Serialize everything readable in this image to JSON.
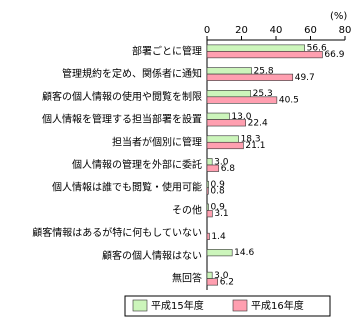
{
  "chart_data": {
    "type": "hbar",
    "unit_label": "(%)",
    "categories": [
      "部署ごとに管理",
      "管理規約を定め、関係者に通知",
      "顧客の個人情報の使用や閲覧を制限",
      "個人情報を管理する担当部署を設置",
      "担当者が個別に管理",
      "個人情報の管理を外部に委託",
      "個人情報は誰でも閲覧・使用可能",
      "その他",
      "顧客情報はあるが特に何もしていない",
      "顧客の個人情報はない",
      "無回答"
    ],
    "series": [
      {
        "name": "平成15年度",
        "color": "#ccf5bb",
        "values": [
          56.6,
          25.8,
          25.3,
          13.0,
          18.3,
          3.0,
          0.9,
          0.9,
          null,
          14.6,
          3.0
        ],
        "value_labels": [
          "56.6",
          "25.8",
          "25.3",
          "13.0",
          "18.3",
          "3.0",
          "0.9",
          "0.9",
          null,
          "14.6",
          "3.0"
        ]
      },
      {
        "name": "平成16年度",
        "color": "#ff9fb0",
        "values": [
          66.9,
          49.7,
          40.5,
          22.4,
          21.1,
          6.8,
          0.8,
          3.1,
          1.4,
          null,
          6.2
        ],
        "value_labels": [
          "66.9",
          "49.7",
          "40.5",
          "22.4",
          "21.1",
          "6.8",
          "0.8",
          "3.1",
          "1.4",
          null,
          "6.2"
        ]
      }
    ],
    "xlim": [
      0,
      80
    ],
    "xticks": [
      0,
      20,
      40,
      60,
      80
    ],
    "grid": false,
    "legend": "bottom"
  }
}
